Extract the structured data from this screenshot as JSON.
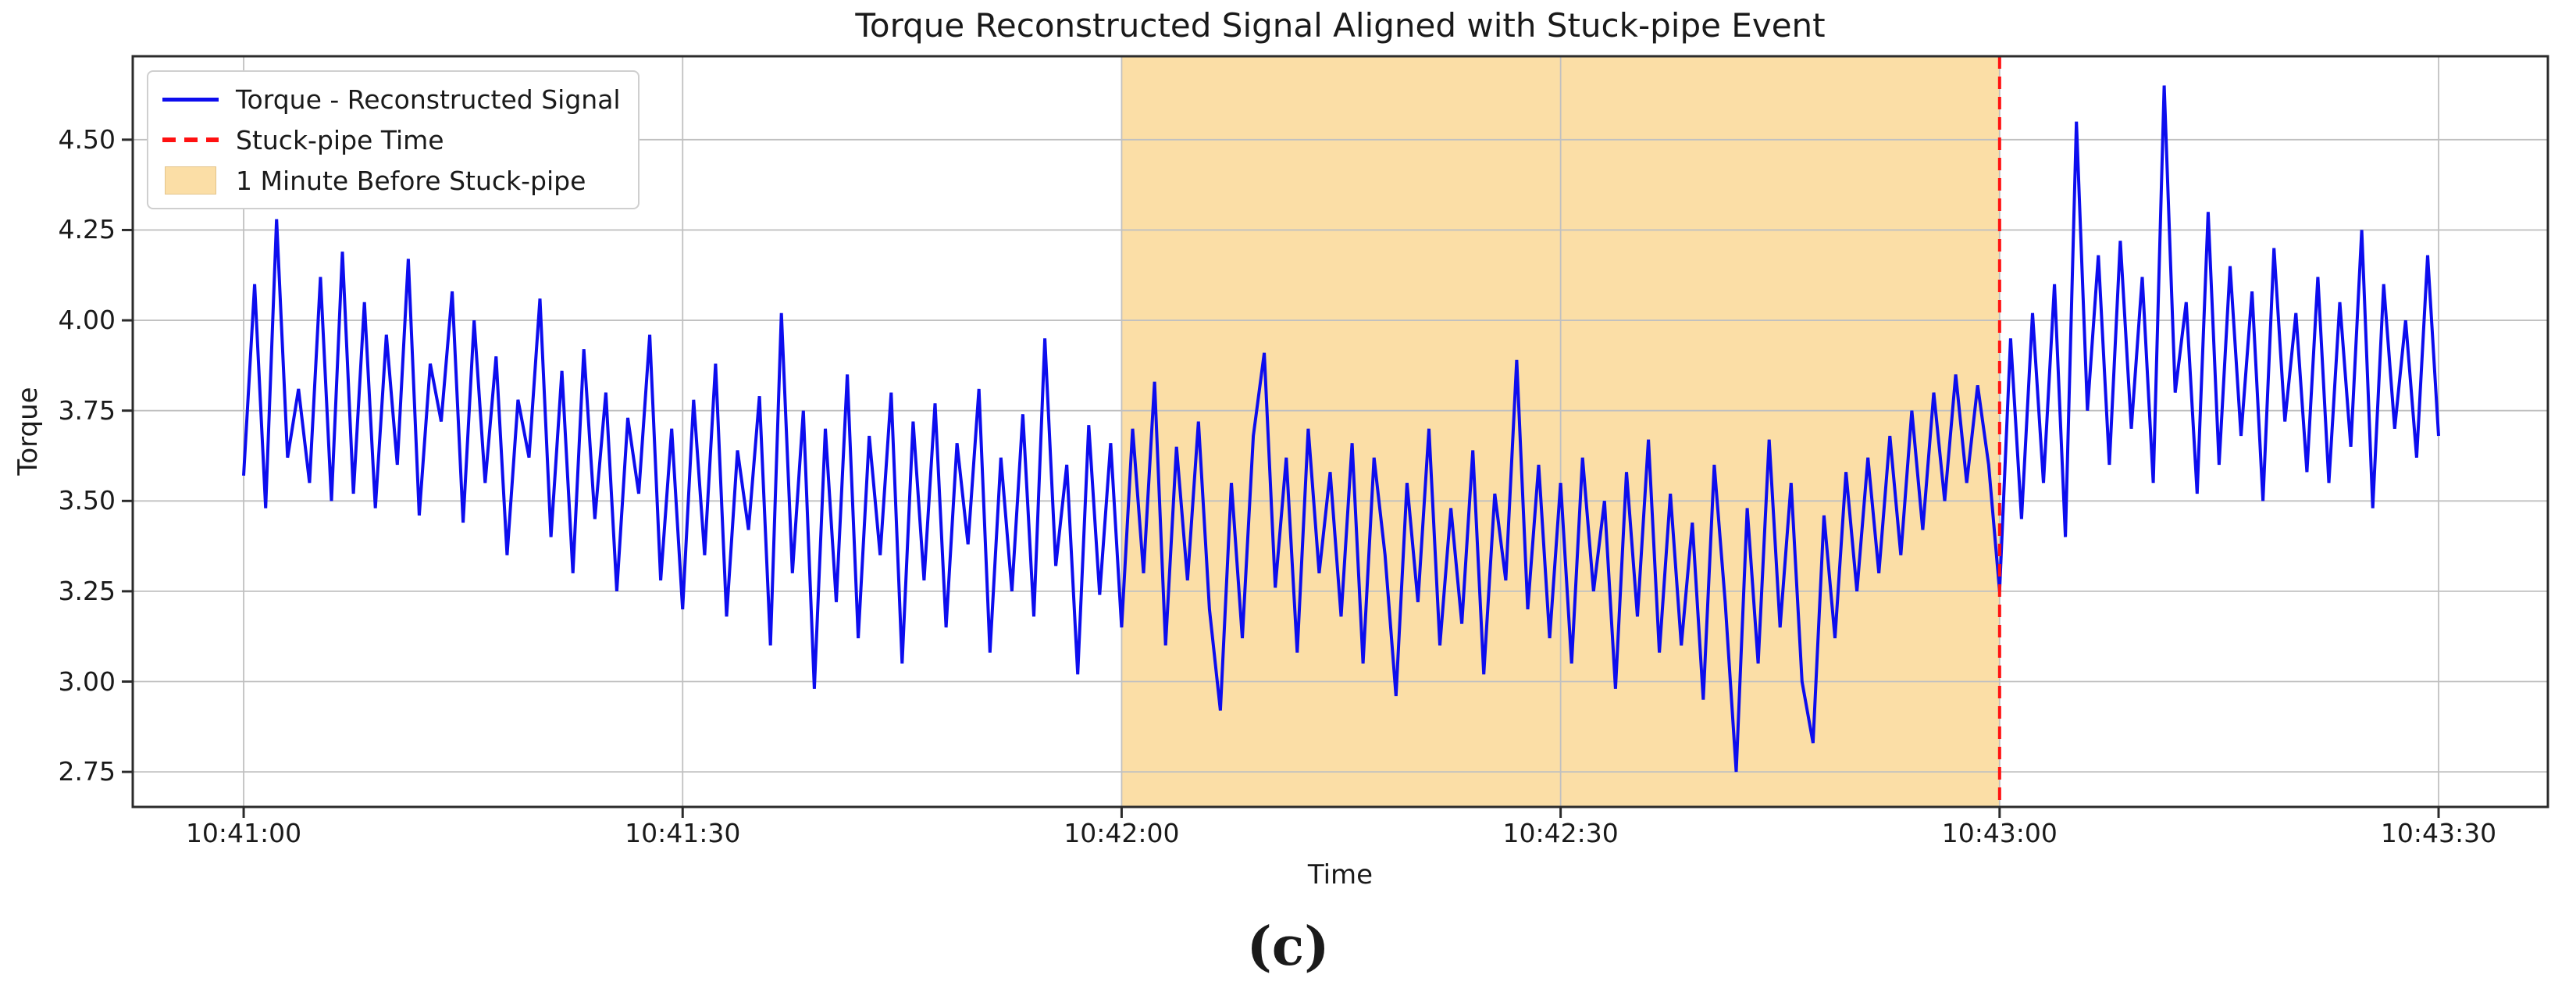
{
  "title": "Torque Reconstructed Signal Aligned with Stuck-pipe Event",
  "caption": "(c)",
  "axes": {
    "xlabel": "Time",
    "ylabel": "Torque",
    "xlim_seconds": [
      -7.58,
      157.47
    ],
    "ylim": [
      2.653,
      4.731
    ],
    "x_ticks": [
      {
        "t": 0,
        "label": "10:41:00"
      },
      {
        "t": 30,
        "label": "10:41:30"
      },
      {
        "t": 60,
        "label": "10:42:00"
      },
      {
        "t": 90,
        "label": "10:42:30"
      },
      {
        "t": 120,
        "label": "10:43:00"
      },
      {
        "t": 150,
        "label": "10:43:30"
      }
    ],
    "y_ticks": [
      2.75,
      3.0,
      3.25,
      3.5,
      3.75,
      4.0,
      4.25,
      4.5
    ],
    "grid_color": "#c0c0c0",
    "spine_color": "#2b2b2b"
  },
  "legend": {
    "items": [
      {
        "label": "Torque - Reconstructed Signal",
        "type": "line",
        "color": "#0d0dee"
      },
      {
        "label": "Stuck-pipe Time",
        "type": "dashed",
        "color": "#ff1111"
      },
      {
        "label": "1 Minute Before Stuck-pipe",
        "type": "patch",
        "color": "#fbdea6"
      }
    ]
  },
  "chart_data": {
    "type": "line",
    "title": "Torque Reconstructed Signal Aligned with Stuck-pipe Event",
    "xlabel": "Time",
    "ylabel": "Torque",
    "x_start_time": "10:41:00",
    "x_end_time": "10:43:30",
    "sample_interval_seconds": 0.75,
    "ylim": [
      2.653,
      4.731
    ],
    "grid": true,
    "legend_position": "upper left",
    "band": {
      "label": "1 Minute Before Stuck-pipe",
      "start_time": "10:42:00",
      "end_time": "10:43:00",
      "t_start_seconds": 60,
      "t_end_seconds": 120,
      "color": "#fbdea6"
    },
    "event_line": {
      "label": "Stuck-pipe Time",
      "time": "10:43:00",
      "t_seconds": 120,
      "color": "#ff1111",
      "style": "dashed"
    },
    "series": [
      {
        "name": "Torque - Reconstructed Signal",
        "color": "#0d0dee",
        "t0_seconds": 0,
        "values": [
          3.57,
          4.1,
          3.48,
          4.28,
          3.62,
          3.81,
          3.55,
          4.12,
          3.5,
          4.19,
          3.52,
          4.05,
          3.48,
          3.96,
          3.6,
          4.17,
          3.46,
          3.88,
          3.72,
          4.08,
          3.44,
          4.0,
          3.55,
          3.9,
          3.35,
          3.78,
          3.62,
          4.06,
          3.4,
          3.86,
          3.3,
          3.92,
          3.45,
          3.8,
          3.25,
          3.73,
          3.52,
          3.96,
          3.28,
          3.7,
          3.2,
          3.78,
          3.35,
          3.88,
          3.18,
          3.64,
          3.42,
          3.79,
          3.1,
          4.02,
          3.3,
          3.75,
          2.98,
          3.7,
          3.22,
          3.85,
          3.12,
          3.68,
          3.35,
          3.8,
          3.05,
          3.72,
          3.28,
          3.77,
          3.15,
          3.66,
          3.38,
          3.81,
          3.08,
          3.62,
          3.25,
          3.74,
          3.18,
          3.95,
          3.32,
          3.6,
          3.02,
          3.71,
          3.24,
          3.66,
          3.15,
          3.7,
          3.3,
          3.83,
          3.1,
          3.65,
          3.28,
          3.72,
          3.2,
          2.92,
          3.55,
          3.12,
          3.68,
          3.91,
          3.26,
          3.62,
          3.08,
          3.7,
          3.3,
          3.58,
          3.18,
          3.66,
          3.05,
          3.62,
          3.35,
          2.96,
          3.55,
          3.22,
          3.7,
          3.1,
          3.48,
          3.16,
          3.64,
          3.02,
          3.52,
          3.28,
          3.89,
          3.2,
          3.6,
          3.12,
          3.55,
          3.05,
          3.62,
          3.25,
          3.5,
          2.98,
          3.58,
          3.18,
          3.67,
          3.08,
          3.52,
          3.1,
          3.44,
          2.95,
          3.6,
          3.22,
          2.75,
          3.48,
          3.05,
          3.67,
          3.15,
          3.55,
          3.0,
          2.83,
          3.46,
          3.12,
          3.58,
          3.25,
          3.62,
          3.3,
          3.68,
          3.35,
          3.75,
          3.42,
          3.8,
          3.5,
          3.85,
          3.55,
          3.82,
          3.6,
          3.25,
          3.95,
          3.45,
          4.02,
          3.55,
          4.1,
          3.4,
          4.55,
          3.75,
          4.18,
          3.6,
          4.22,
          3.7,
          4.12,
          3.55,
          4.65,
          3.8,
          4.05,
          3.52,
          4.3,
          3.6,
          4.15,
          3.68,
          4.08,
          3.5,
          4.2,
          3.72,
          4.02,
          3.58,
          4.12,
          3.55,
          4.05,
          3.65,
          4.25,
          3.48,
          4.1,
          3.7,
          4.0,
          3.62,
          4.18,
          3.68
        ]
      }
    ]
  }
}
